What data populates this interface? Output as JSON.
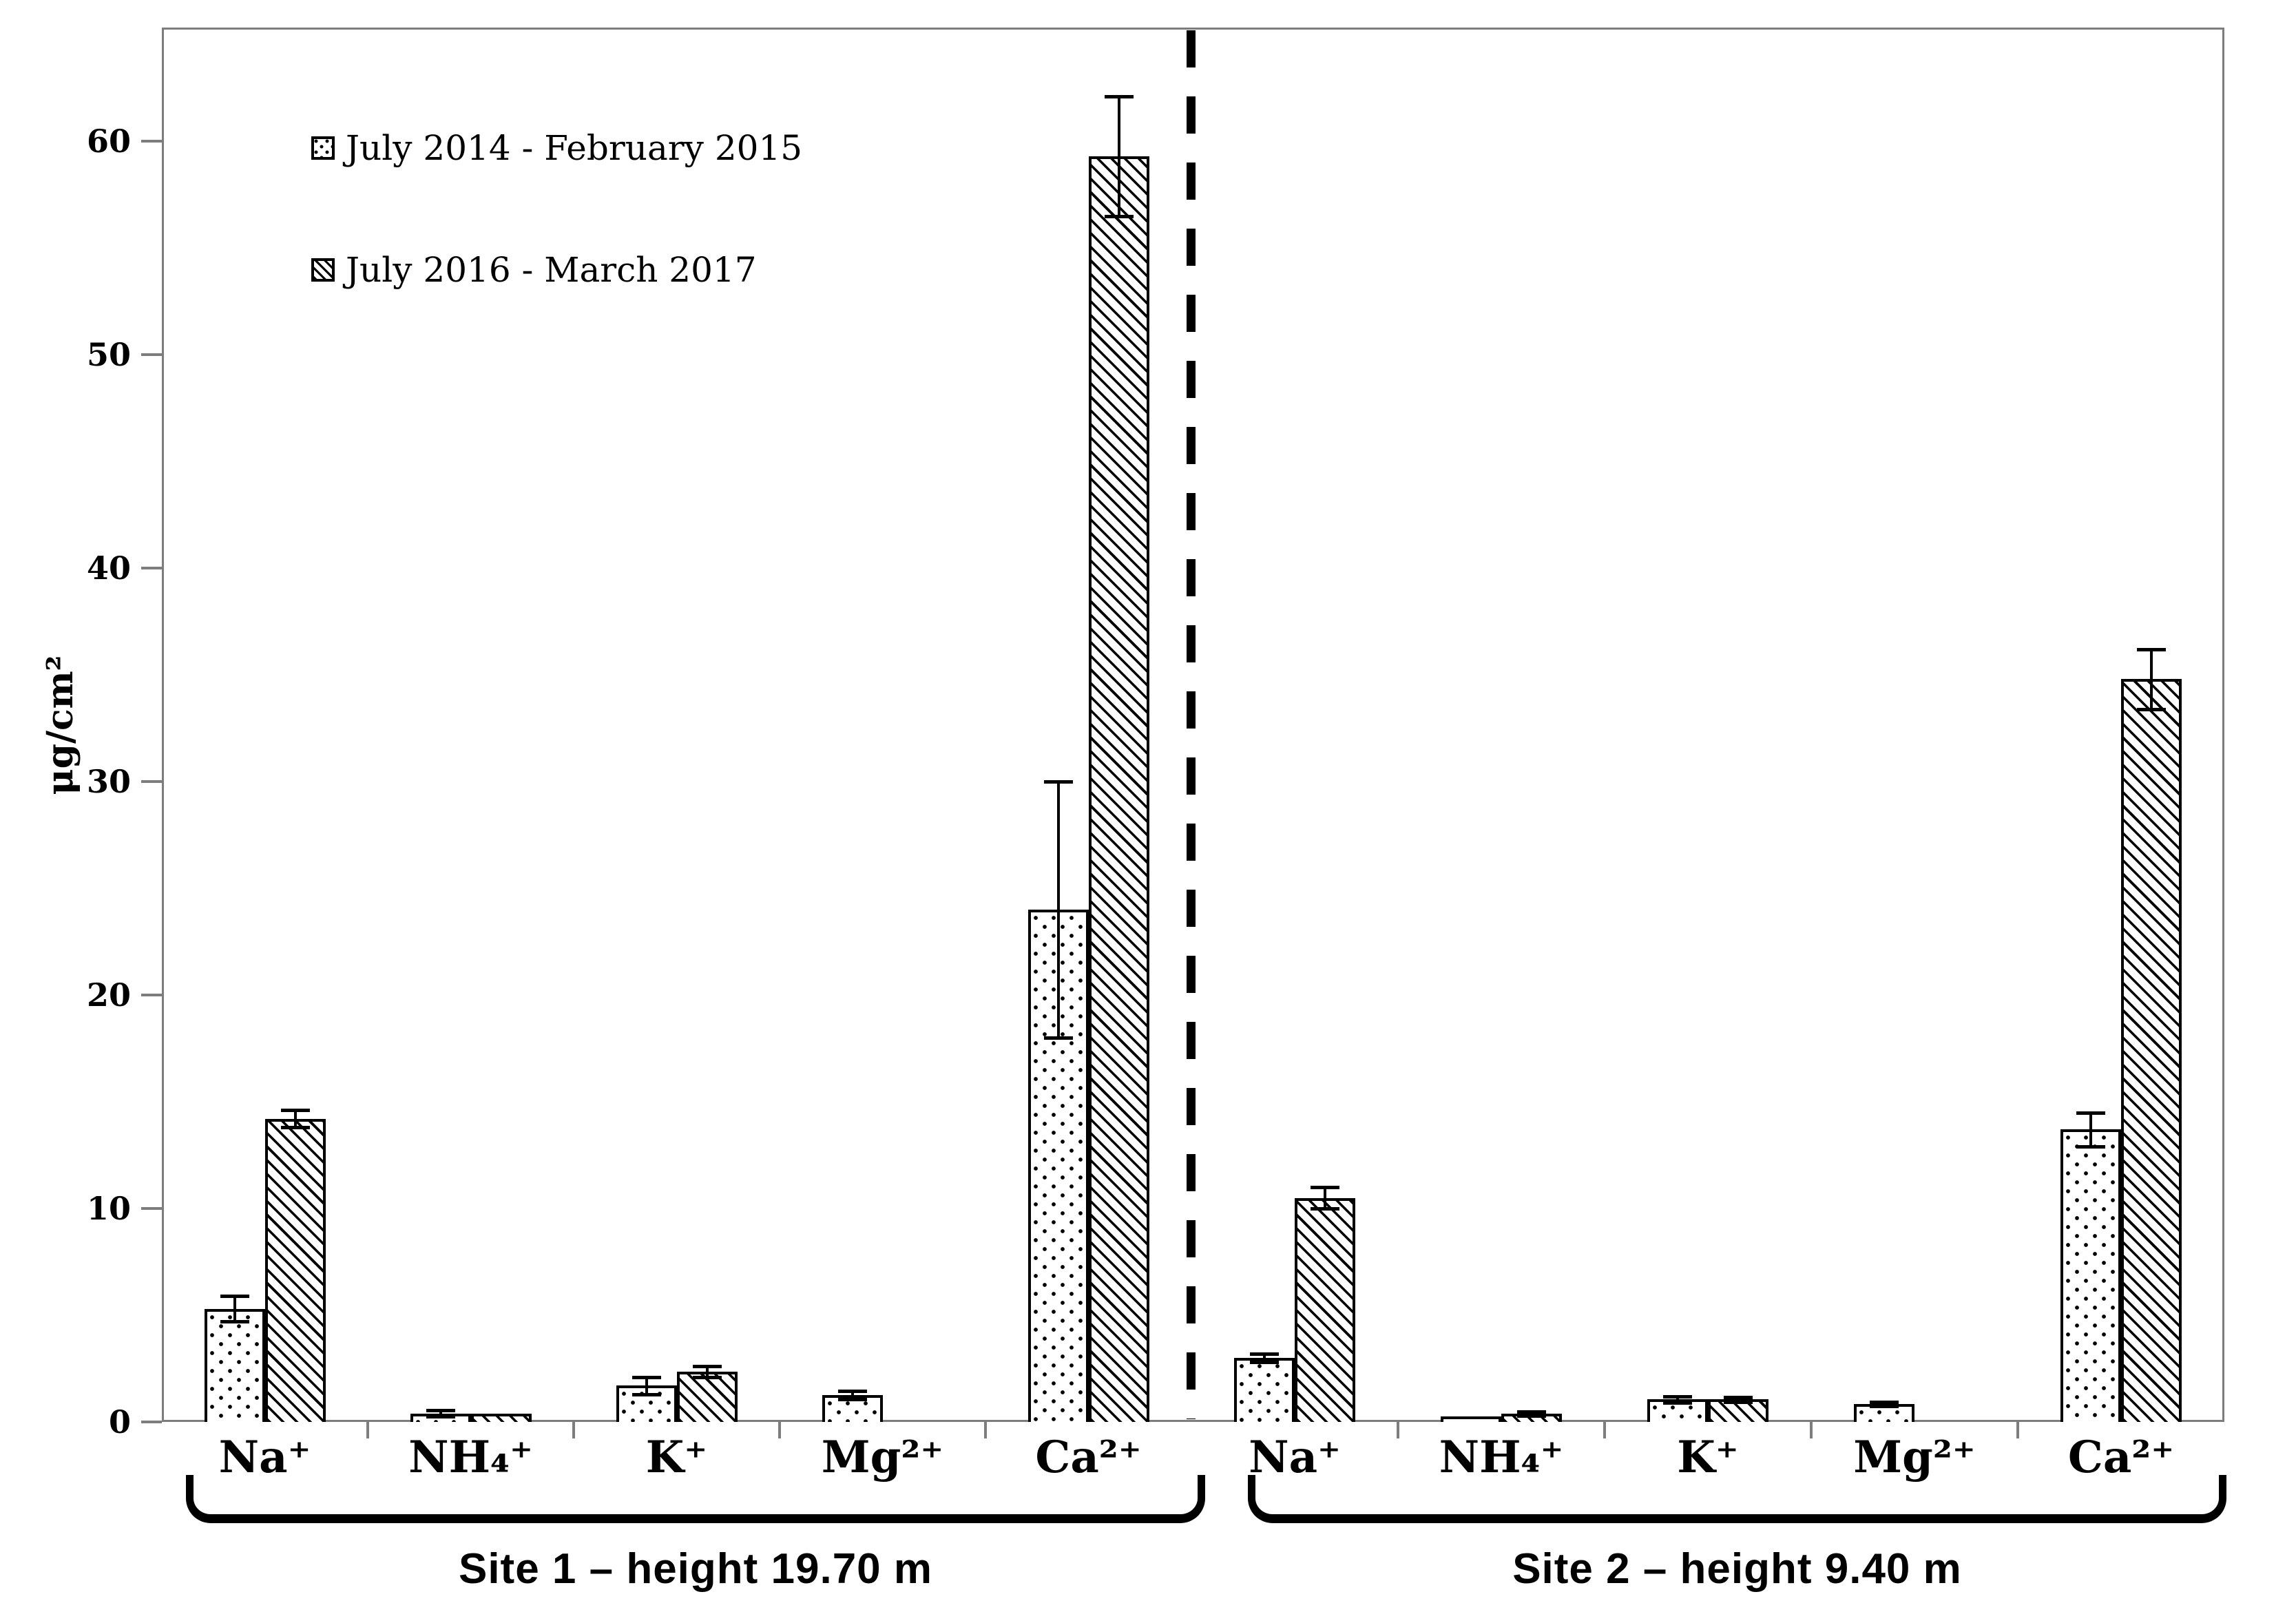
{
  "chart_data": {
    "type": "bar",
    "title": "",
    "ylabel": "μg/cm²",
    "ylim": [
      0,
      65
    ],
    "yticks": [
      "0",
      "10",
      "20",
      "30",
      "40",
      "50",
      "60"
    ],
    "ytick_values": [
      0,
      10,
      20,
      30,
      40,
      50,
      60
    ],
    "grid": "off",
    "legend_position": "top-left-inside",
    "legend": [
      {
        "label": "July 2014 - February 2015",
        "pattern": "dots"
      },
      {
        "label": "July 2016 - March 2017",
        "pattern": "hatch"
      }
    ],
    "groups": [
      "Na⁺",
      "NH₄⁺",
      "K⁺",
      "Mg²⁺",
      "Ca²⁺"
    ],
    "sites": [
      {
        "label": "Site 1 – height 19.70 m",
        "series": [
          {
            "name": "July 2014 - February 2015",
            "pattern": "dots",
            "values": [
              5.3,
              0.4,
              1.7,
              1.25,
              24.0
            ],
            "errors": [
              0.6,
              0.15,
              0.4,
              0.2,
              6.0
            ]
          },
          {
            "name": "July 2016 - March 2017",
            "pattern": "hatch",
            "values": [
              14.2,
              0.4,
              2.35,
              0,
              59.3
            ],
            "errors": [
              0.4,
              0,
              0.25,
              0,
              2.8
            ]
          }
        ]
      },
      {
        "label": "Site 2 – height 9.40 m",
        "series": [
          {
            "name": "July 2014 - February 2015",
            "pattern": "dots",
            "values": [
              3.0,
              0.25,
              1.05,
              0.85,
              13.7
            ],
            "errors": [
              0.2,
              0,
              0.15,
              0.1,
              0.8
            ]
          },
          {
            "name": "July 2016 - March 2017",
            "pattern": "hatch",
            "values": [
              10.5,
              0.4,
              1.05,
              0,
              34.8
            ],
            "errors": [
              0.5,
              0.1,
              0.1,
              0,
              1.4
            ]
          }
        ]
      }
    ]
  }
}
